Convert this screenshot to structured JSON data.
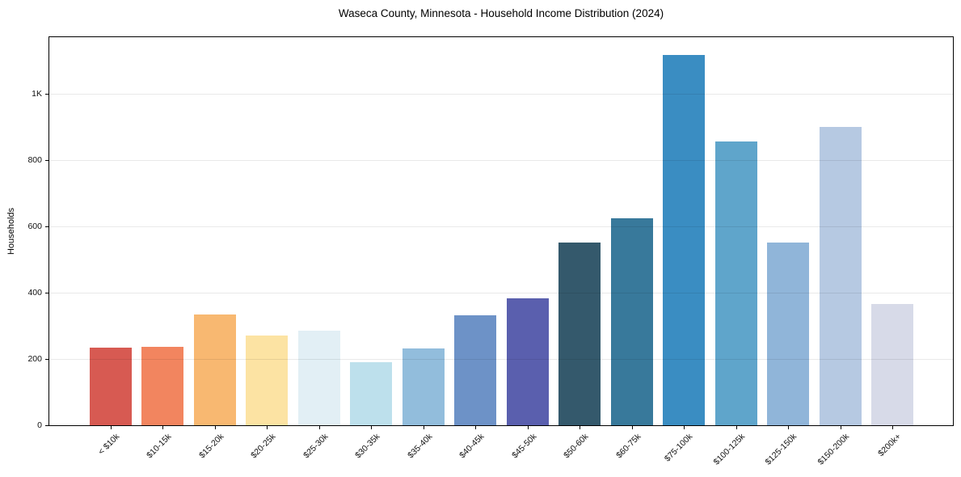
{
  "chart_data": {
    "type": "bar",
    "title": "Waseca County, Minnesota - Household Income Distribution (2024)",
    "xlabel": "",
    "ylabel": "Households",
    "categories": [
      "< $10k",
      "$10-15k",
      "$15-20k",
      "$20-25k",
      "$25-30k",
      "$30-35k",
      "$35-40k",
      "$40-45k",
      "$45-50k",
      "$50-60k",
      "$60-75k",
      "$75-100k",
      "$100-125k",
      "$125-150k",
      "$150-200k",
      "$200k+"
    ],
    "values": [
      234,
      237,
      334,
      271,
      285,
      190,
      232,
      332,
      384,
      552,
      626,
      1118,
      858,
      553,
      901,
      366
    ],
    "bar_colors": [
      "#d75a52",
      "#f2855f",
      "#f8b871",
      "#fce3a3",
      "#e2eff5",
      "#bde0ec",
      "#92bddc",
      "#6d92c7",
      "#5a5fae",
      "#34596c",
      "#38799b",
      "#3a8dc2",
      "#5fa5cb",
      "#90b5d9",
      "#b6c9e2",
      "#d7dae8"
    ],
    "ylim": [
      0,
      1172
    ],
    "yticks": [
      {
        "value": 0,
        "label": "0"
      },
      {
        "value": 200,
        "label": "200"
      },
      {
        "value": 400,
        "label": "400"
      },
      {
        "value": 600,
        "label": "600"
      },
      {
        "value": 800,
        "label": "800"
      },
      {
        "value": 1000,
        "label": "1K"
      }
    ],
    "grid": "horizontal lines at y ticks, drawn over bars, light gray",
    "legend_position": "none",
    "background_color": "#ffffff",
    "frame_color": "#000000"
  }
}
